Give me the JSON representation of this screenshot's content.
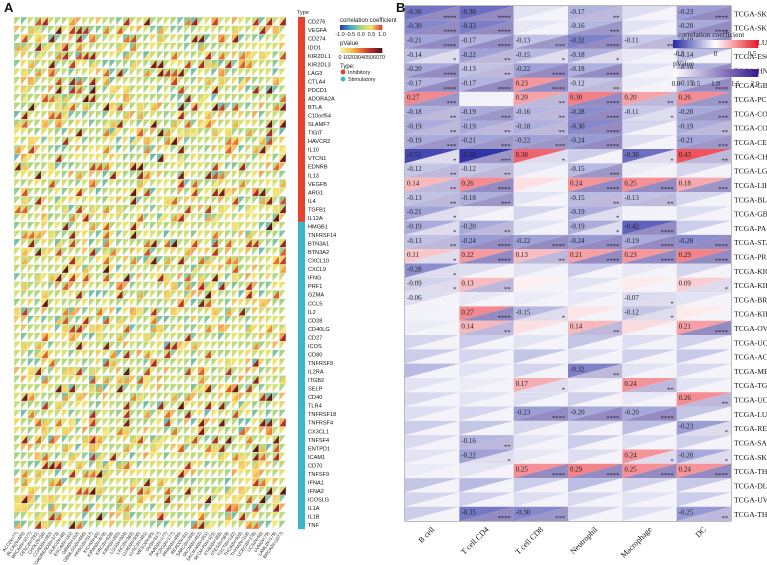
{
  "panels": {
    "a_label": "A",
    "b_label": "B"
  },
  "chart_data": [
    {
      "type": "heatmap",
      "panel": "A",
      "rows": [
        "CD276",
        "VEGFA",
        "CD274",
        "IDO1",
        "KIR2DL1",
        "KIR2DL3",
        "LAG3",
        "CTLA4",
        "PDCD1",
        "ADORA2A",
        "BTLA",
        "C10orf54",
        "SLAMF7",
        "TIGIT",
        "HAVCR2",
        "IL10",
        "VTCN1",
        "EDNRB",
        "IL13",
        "VEGFB",
        "ARG1",
        "IL4",
        "TGFB1",
        "IL12A",
        "HMGB1",
        "TNFRSF14",
        "BTN3A1",
        "BTN3A2",
        "CXCL10",
        "CXCL9",
        "IFNG",
        "PRF1",
        "GZMA",
        "CCL5",
        "IL2",
        "CD28",
        "CD40LG",
        "CD27",
        "ICOS",
        "CD80",
        "TNFRSF9",
        "IL2RA",
        "ITGB2",
        "SELP",
        "CD40",
        "TLR4",
        "TNFRSF18",
        "TNFRSF4",
        "CX3CL1",
        "TNFSF4",
        "ENTPD1",
        "ICAM1",
        "CD70",
        "TNFSF9",
        "IFNA1",
        "IFNA2",
        "ICOSLG",
        "IL1A",
        "IL1B",
        "TNF"
      ],
      "row_type": [
        "Inhibitory",
        "Inhibitory",
        "Inhibitory",
        "Inhibitory",
        "Inhibitory",
        "Inhibitory",
        "Inhibitory",
        "Inhibitory",
        "Inhibitory",
        "Inhibitory",
        "Inhibitory",
        "Inhibitory",
        "Inhibitory",
        "Inhibitory",
        "Inhibitory",
        "Inhibitory",
        "Inhibitory",
        "Inhibitory",
        "Inhibitory",
        "Inhibitory",
        "Inhibitory",
        "Inhibitory",
        "Inhibitory",
        "Inhibitory",
        "Stimulatory",
        "Stimulatory",
        "Stimulatory",
        "Stimulatory",
        "Stimulatory",
        "Stimulatory",
        "Stimulatory",
        "Stimulatory",
        "Stimulatory",
        "Stimulatory",
        "Stimulatory",
        "Stimulatory",
        "Stimulatory",
        "Stimulatory",
        "Stimulatory",
        "Stimulatory",
        "Stimulatory",
        "Stimulatory",
        "Stimulatory",
        "Stimulatory",
        "Stimulatory",
        "Stimulatory",
        "Stimulatory",
        "Stimulatory",
        "Stimulatory",
        "Stimulatory",
        "Stimulatory",
        "Stimulatory",
        "Stimulatory",
        "Stimulatory",
        "Stimulatory",
        "Stimulatory",
        "Stimulatory",
        "Stimulatory",
        "Stimulatory",
        "Stimulatory"
      ],
      "columns": [
        "ACC(N=77)",
        "BLCA(N=405)",
        "BRCA(N=1077)",
        "CESC(N=291)",
        "CHOL(N=36)",
        "COAD(N=282)",
        "COADREAD(N=373)",
        "DLBC(N=46)",
        "ESCA(N=181)",
        "GBM(N=152)",
        "GBMLGG(N=656)",
        "HNSC(N=517)",
        "KICH(N=65)",
        "KIPAN(N=878)",
        "KIRC(N=528)",
        "KIRP(N=285)",
        "LGG(N=504)",
        "LIHC(N=363)",
        "LUAD(N=500)",
        "LUSC(N=491)",
        "MESO(N=85)",
        "OV(N=417)",
        "PAAD(N=177)",
        "PCPG(N=177)",
        "PRAD(N=495)",
        "READ(N=91)",
        "SARC(N=258)",
        "SKCM(N=452)",
        "SKCM-M(N=351)",
        "SKCM-P(N=101)",
        "STAD(N=388)",
        "STES(N=569)",
        "TGCT(N=132)",
        "THCA(N=503)",
        "THYM(N=118)",
        "UCEC(N=178)",
        "UCS(N=56)",
        "UVM(N=79)",
        "LAML(N=179)",
        "BRCA(N=1077)"
      ],
      "type_label": "Type",
      "legend": {
        "correlation_title": "correlation coefficient",
        "correlation_ticks": [
          "-1.0",
          "-0.5",
          "0.0",
          "0.5",
          "1.0"
        ],
        "pvalue_title": "pValue",
        "pvalue_ticks": [
          "0",
          "10",
          "20",
          "30",
          "40",
          "50",
          "60",
          "70"
        ],
        "type_title": "Type:",
        "types": [
          "Inhibitory",
          "Stimulatory"
        ],
        "type_colors": {
          "Inhibitory": "#e8412e",
          "Stimulatory": "#3cb7c9"
        }
      }
    },
    {
      "type": "heatmap",
      "panel": "B",
      "columns": [
        "B cell",
        "T cell CD4",
        "T cell CD8",
        "Neutrophil",
        "Macrophage",
        "DC"
      ],
      "rows": [
        "TCGA-SKCM-M(N=351)",
        "TCGA-SKCM(N=452)",
        "TCGA-LUSC(N=491)",
        "TCGA-ESCA(N=181)",
        "TCGA-HNSC(N=517)",
        "TCGA-GBMLGG(N=656)",
        "TCGA-PCPG(N=177)",
        "TCGA-COADREAD(N=373)",
        "TCGA-COAD(N=282)",
        "TCGA-CESC(N=291)",
        "TCGA-CHOL(N=36)",
        "TCGA-LGG(N=504)",
        "TCGA-LIHC(N=363)",
        "TCGA-BLCA(N=405)",
        "TCGA-GBM(N=152)",
        "TCGA-PAAD(N=177)",
        "TCGA-STAD(N=388)",
        "TCGA-PRAD(N=495)",
        "TCGA-KICH(N=65)",
        "TCGA-KIRC(N=528)",
        "TCGA-BRCA(N=1077)",
        "TCGA-KIRP(N=285)",
        "TCGA-OV(N=417)",
        "TCGA-UCS(N=56)",
        "TCGA-ACC(N=77)",
        "TCGA-MESO(N=85)",
        "TCGA-TGCT(N=132)",
        "TCGA-UCEC(N=178)",
        "TCGA-LUAD(N=500)",
        "TCGA-READ(N=91)",
        "TCGA-SARC(N=258)",
        "TCGA-SKCM-P(N=101)",
        "TCGA-THCA(N=503)",
        "TCGA-DLBC(N=46)",
        "TCGA-UVM(N=79)",
        "TCGA-THYM(N=118)"
      ],
      "correlation": [
        [
          -0.36,
          -0.38,
          -0.05,
          -0.17,
          -0.06,
          -0.23
        ],
        [
          -0.3,
          -0.33,
          -0.04,
          -0.16,
          -0.05,
          -0.2
        ],
        [
          -0.21,
          -0.17,
          -0.13,
          -0.32,
          -0.11,
          -0.19
        ],
        [
          -0.14,
          -0.22,
          -0.15,
          -0.18,
          -0.04,
          -0.14
        ],
        [
          -0.2,
          -0.13,
          -0.22,
          -0.18,
          -0.05,
          -0.18
        ],
        [
          -0.17,
          -0.17,
          0.23,
          -0.12,
          -0.03,
          -0.15
        ],
        [
          0.27,
          -0.02,
          0.2,
          0.3,
          0.2,
          0.26
        ],
        [
          -0.18,
          -0.19,
          -0.16,
          -0.28,
          -0.11,
          -0.2
        ],
        [
          -0.19,
          -0.19,
          -0.18,
          -0.3,
          -0.08,
          -0.19
        ],
        [
          -0.19,
          -0.21,
          -0.22,
          -0.24,
          -0.06,
          -0.21
        ],
        [
          -0.51,
          -0.58,
          0.38,
          -0.1,
          -0.38,
          0.43
        ],
        [
          -0.12,
          -0.12,
          -0.05,
          -0.15,
          -0.03,
          -0.08
        ],
        [
          0.14,
          0.26,
          0.05,
          0.24,
          0.25,
          0.18
        ],
        [
          -0.13,
          -0.18,
          -0.05,
          -0.15,
          -0.13,
          -0.08
        ],
        [
          -0.21,
          -0.05,
          -0.08,
          -0.19,
          -0.02,
          -0.06
        ],
        [
          -0.19,
          -0.2,
          -0.05,
          -0.19,
          -0.42,
          -0.1
        ],
        [
          -0.13,
          -0.24,
          -0.22,
          -0.24,
          -0.19,
          -0.28
        ],
        [
          0.11,
          0.22,
          0.13,
          0.21,
          0.23,
          0.29
        ],
        [
          -0.28,
          -0.06,
          -0.05,
          -0.1,
          -0.04,
          -0.08
        ],
        [
          -0.09,
          0.13,
          0.02,
          -0.05,
          0.03,
          0.09
        ],
        [
          -0.06,
          -0.04,
          -0.03,
          -0.04,
          -0.07,
          -0.05
        ],
        [
          -0.02,
          0.27,
          -0.15,
          0.04,
          -0.12,
          0.03
        ],
        [
          -0.03,
          0.14,
          0.05,
          0.14,
          0.06,
          0.21
        ],
        [
          -0.08,
          -0.1,
          -0.05,
          -0.12,
          -0.06,
          -0.09
        ],
        [
          -0.1,
          -0.08,
          -0.12,
          -0.06,
          -0.09,
          -0.11
        ],
        [
          -0.15,
          -0.05,
          -0.08,
          -0.32,
          -0.05,
          -0.07
        ],
        [
          -0.05,
          -0.03,
          0.17,
          -0.04,
          0.24,
          -0.05
        ],
        [
          -0.07,
          -0.05,
          -0.06,
          -0.09,
          -0.04,
          0.26
        ],
        [
          -0.06,
          -0.08,
          -0.23,
          -0.2,
          -0.2,
          -0.12
        ],
        [
          -0.1,
          -0.12,
          -0.08,
          -0.09,
          -0.14,
          -0.23
        ],
        [
          -0.07,
          -0.16,
          -0.05,
          -0.1,
          -0.06,
          -0.09
        ],
        [
          -0.05,
          -0.22,
          -0.04,
          -0.06,
          0.24,
          -0.2
        ],
        [
          -0.03,
          -0.05,
          0.25,
          0.29,
          0.25,
          0.24
        ],
        [
          -0.12,
          -0.15,
          -0.1,
          -0.14,
          -0.09,
          -0.11
        ],
        [
          -0.08,
          -0.09,
          -0.06,
          -0.07,
          -0.05,
          -0.1
        ],
        [
          -0.1,
          -0.35,
          -0.3,
          -0.08,
          -0.06,
          -0.25
        ]
      ],
      "labels": [
        [
          "-0.36",
          "-0.38",
          "",
          "-0.17",
          "",
          "-0.23"
        ],
        [
          "-0.30",
          "-0.33",
          "",
          "-0.16",
          "",
          "-0.20"
        ],
        [
          "-0.21",
          "-0.17",
          "-0.13",
          "-0.32",
          "-0.11",
          "-0.19"
        ],
        [
          "-0.14",
          "-0.22",
          "-0.15",
          "-0.18",
          "",
          "-0.14"
        ],
        [
          "-0.20",
          "-0.13",
          "-0.22",
          "-0.18",
          "",
          "-0.18"
        ],
        [
          "-0.17",
          "-0.17",
          "0.23",
          "-0.12",
          "",
          "-0.15"
        ],
        [
          "0.27",
          "",
          "0.20",
          "0.30",
          "0.20",
          "0.26"
        ],
        [
          "-0.18",
          "-0.19",
          "-0.16",
          "-0.28",
          "-0.11",
          "-0.20"
        ],
        [
          "-0.19",
          "-0.19",
          "-0.18",
          "-0.30",
          "",
          "-0.19"
        ],
        [
          "-0.19",
          "-0.21",
          "-0.22",
          "-0.24",
          "",
          "-0.21"
        ],
        [
          "-0.51",
          "-0.58",
          "0.38",
          "",
          "-0.38",
          "0.43"
        ],
        [
          "-0.12",
          "-0.12",
          "",
          "-0.15",
          "",
          ""
        ],
        [
          "0.14",
          "0.26",
          "",
          "0.24",
          "0.25",
          "0.18"
        ],
        [
          "-0.13",
          "-0.18",
          "",
          "-0.15",
          "-0.13",
          ""
        ],
        [
          "-0.21",
          "",
          "",
          "-0.19",
          "",
          ""
        ],
        [
          "-0.19",
          "-0.20",
          "",
          "-0.19",
          "-0.42",
          ""
        ],
        [
          "-0.13",
          "-0.24",
          "-0.22",
          "-0.24",
          "-0.19",
          "-0.28"
        ],
        [
          "0.11",
          "0.22",
          "0.13",
          "0.21",
          "0.23",
          "0.29"
        ],
        [
          "-0.28",
          "",
          "",
          "",
          "",
          ""
        ],
        [
          "-0.09",
          "0.13",
          "",
          "",
          "",
          "0.09"
        ],
        [
          "-0.06",
          "",
          "",
          "",
          "-0.07",
          ""
        ],
        [
          "",
          "0.27",
          "-0.15",
          "",
          "-0.12",
          ""
        ],
        [
          "",
          "0.14",
          "",
          "0.14",
          "",
          "0.21"
        ],
        [
          "",
          "",
          "",
          "",
          "",
          ""
        ],
        [
          "",
          "",
          "",
          "",
          "",
          ""
        ],
        [
          "",
          "",
          "",
          "-0.32",
          "",
          ""
        ],
        [
          "",
          "",
          "0.17",
          "",
          "0.24",
          ""
        ],
        [
          "",
          "",
          "",
          "",
          "",
          "0.26"
        ],
        [
          "",
          "",
          "-0.23",
          "-0.20",
          "-0.20",
          ""
        ],
        [
          "",
          "",
          "",
          "",
          "",
          "-0.23"
        ],
        [
          "",
          "-0.16",
          "",
          "",
          "",
          ""
        ],
        [
          "",
          "-0.22",
          "",
          "",
          "0.24",
          "-0.20"
        ],
        [
          "",
          "",
          "0.25",
          "0.29",
          "0.25",
          "0.24"
        ],
        [
          "",
          "",
          "",
          "",
          "",
          ""
        ],
        [
          "",
          "",
          "",
          "",
          "",
          ""
        ],
        [
          "",
          "-0.35",
          "-0.30",
          "",
          "",
          "-0.25"
        ]
      ],
      "stars": [
        [
          "****",
          "****",
          "",
          "**",
          "",
          "****"
        ],
        [
          "****",
          "****",
          "",
          "***",
          "",
          "****"
        ],
        [
          "****",
          "****",
          "***",
          "****",
          "**",
          "****"
        ],
        [
          "*",
          "**",
          "*",
          "*",
          "",
          ""
        ],
        [
          "****",
          "**",
          "****",
          "****",
          "",
          "****"
        ],
        [
          "****",
          "****",
          "****",
          "**",
          "",
          "****"
        ],
        [
          "***",
          "",
          "**",
          "****",
          "**",
          "***"
        ],
        [
          "**",
          "***",
          "**",
          "****",
          "*",
          "***"
        ],
        [
          "**",
          "**",
          "**",
          "****",
          "",
          "**"
        ],
        [
          "***",
          "***",
          "***",
          "****",
          "",
          "***"
        ],
        [
          "*",
          "***",
          "*",
          "",
          "*",
          "**"
        ],
        [
          "**",
          "**",
          "",
          "***",
          "",
          ""
        ],
        [
          "**",
          "****",
          "",
          "****",
          "****",
          "***"
        ],
        [
          "**",
          "***",
          "",
          "**",
          "**",
          ""
        ],
        [
          "*",
          "",
          "",
          "*",
          "",
          ""
        ],
        [
          "*",
          "**",
          "",
          "*",
          "****",
          ""
        ],
        [
          "**",
          "****",
          "****",
          "****",
          "****",
          "****"
        ],
        [
          "*",
          "****",
          "**",
          "****",
          "****",
          "****"
        ],
        [
          "*",
          "",
          "",
          "",
          "",
          ""
        ],
        [
          "*",
          "**",
          "",
          "",
          "",
          "*"
        ],
        [
          "",
          "",
          "",
          "",
          "*",
          ""
        ],
        [
          "",
          "****",
          "*",
          "",
          "*",
          ""
        ],
        [
          "",
          "**",
          "",
          "**",
          "",
          "****"
        ],
        [
          "",
          "",
          "",
          "",
          "",
          ""
        ],
        [
          "",
          "",
          "",
          "",
          "",
          ""
        ],
        [
          "",
          "",
          "",
          "**",
          "",
          ""
        ],
        [
          "",
          "",
          "*",
          "",
          "**",
          ""
        ],
        [
          "",
          "",
          "",
          "",
          "",
          "**"
        ],
        [
          "",
          "",
          "****",
          "****",
          "****",
          ""
        ],
        [
          "",
          "",
          "",
          "",
          "",
          "*"
        ],
        [
          "",
          "**",
          "",
          "",
          "",
          ""
        ],
        [
          "",
          "*",
          "",
          "",
          "*",
          "*"
        ],
        [
          "",
          "",
          "****",
          "****",
          "****",
          "****"
        ],
        [
          "",
          "",
          "",
          "",
          "",
          ""
        ],
        [
          "",
          "",
          "",
          "",
          "",
          ""
        ],
        [
          "",
          "****",
          "***",
          "",
          "",
          "**"
        ]
      ],
      "legend": {
        "correlation_title": "correlation coefficient",
        "correlation_ticks": [
          "-0.5",
          "0",
          "0.5"
        ],
        "pvalue_title": "pValue",
        "pvalue_ticks": [
          "0.0",
          "0.5",
          "1.0",
          "1.5",
          "2.0"
        ]
      }
    }
  ]
}
